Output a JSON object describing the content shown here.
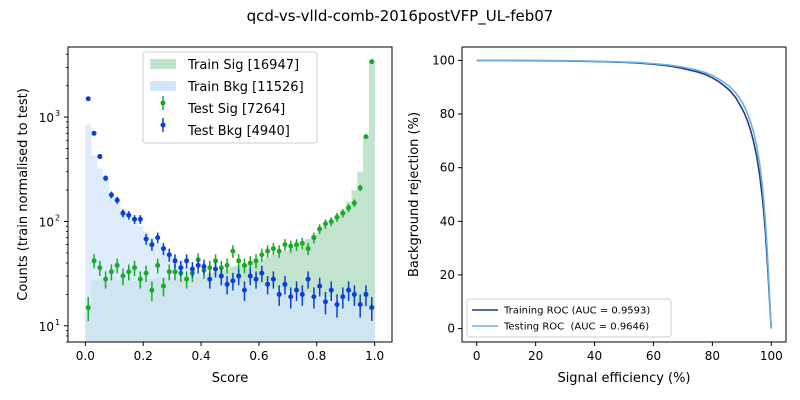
{
  "figure": {
    "title": "qcd-vs-vlld-comb-2016postVFP_UL-feb07"
  },
  "chart_data": [
    {
      "type": "histogram",
      "xlabel": "Score",
      "ylabel": "Counts (train normalised to test)",
      "xlim": [
        -0.06,
        1.06
      ],
      "ylim": [
        7,
        4700
      ],
      "yscale": "log",
      "xticks": [
        0.0,
        0.2,
        0.4,
        0.6,
        0.8,
        1.0
      ],
      "xtick_labels": [
        "0.0",
        "0.2",
        "0.4",
        "0.6",
        "0.8",
        "1.0"
      ],
      "yticks": [
        10,
        100,
        1000
      ],
      "ytick_labels": [
        "10",
        "10",
        "10"
      ],
      "ytick_exponents": [
        "1",
        "2",
        "3"
      ],
      "legend_position": "top-center",
      "bin_edges": [
        0.0,
        0.02,
        0.04,
        0.06,
        0.08,
        0.1,
        0.12,
        0.14,
        0.16,
        0.18,
        0.2,
        0.22,
        0.24,
        0.26,
        0.28,
        0.3,
        0.32,
        0.34,
        0.36,
        0.38,
        0.4,
        0.42,
        0.44,
        0.46,
        0.48,
        0.5,
        0.52,
        0.54,
        0.56,
        0.58,
        0.6,
        0.62,
        0.64,
        0.66,
        0.68,
        0.7,
        0.72,
        0.74,
        0.76,
        0.78,
        0.8,
        0.82,
        0.84,
        0.86,
        0.88,
        0.9,
        0.92,
        0.94,
        0.96,
        0.98,
        1.0
      ],
      "legend": [
        {
          "label": "Train Sig [16947]",
          "kind": "fill",
          "color": "#c2e3cd"
        },
        {
          "label": "Train Bkg [11526]",
          "kind": "fill",
          "color": "#d3e5fb"
        },
        {
          "label": "Test Sig [7264]",
          "kind": "errorbar",
          "color": "#1aaa2a"
        },
        {
          "label": "Test Bkg [4940]",
          "kind": "errorbar",
          "color": "#0a3fd6"
        }
      ],
      "series": [
        {
          "kind": "train-signal-histogram",
          "color": "#c2e3cd",
          "values": [
            15,
            27,
            28,
            27,
            29,
            27,
            28,
            28,
            27,
            28,
            28,
            28,
            29,
            29,
            29,
            29,
            29,
            30,
            30,
            30,
            31,
            32,
            33,
            34,
            35,
            37,
            38,
            39,
            40,
            41,
            43,
            45,
            48,
            50,
            52,
            55,
            58,
            62,
            68,
            75,
            82,
            90,
            100,
            112,
            130,
            155,
            200,
            300,
            650,
            3400
          ]
        },
        {
          "kind": "train-background-histogram",
          "color": "#d3e5fb",
          "values": [
            850,
            430,
            320,
            260,
            180,
            160,
            130,
            120,
            100,
            90,
            80,
            70,
            60,
            57,
            50,
            46,
            42,
            38,
            35,
            33,
            31,
            30,
            29,
            28,
            28,
            27,
            27,
            26,
            26,
            25,
            25,
            24,
            24,
            23,
            22,
            22,
            22,
            21,
            21,
            20,
            20,
            19,
            19,
            19,
            18,
            18,
            17,
            16,
            15,
            14
          ]
        },
        {
          "kind": "test-signal-points",
          "color": "#1aaa2a",
          "x": [
            0.01,
            0.03,
            0.05,
            0.07,
            0.09,
            0.11,
            0.13,
            0.15,
            0.17,
            0.19,
            0.21,
            0.23,
            0.25,
            0.27,
            0.29,
            0.31,
            0.33,
            0.35,
            0.37,
            0.39,
            0.41,
            0.43,
            0.45,
            0.47,
            0.49,
            0.51,
            0.53,
            0.55,
            0.57,
            0.59,
            0.61,
            0.63,
            0.65,
            0.67,
            0.69,
            0.71,
            0.73,
            0.75,
            0.77,
            0.79,
            0.81,
            0.83,
            0.85,
            0.87,
            0.89,
            0.91,
            0.93,
            0.95,
            0.97,
            0.99
          ],
          "y": [
            15,
            42,
            36,
            28,
            33,
            38,
            30,
            33,
            36,
            28,
            32,
            22,
            38,
            24,
            33,
            33,
            32,
            28,
            32,
            43,
            34,
            36,
            42,
            36,
            38,
            52,
            42,
            38,
            40,
            42,
            48,
            52,
            55,
            52,
            60,
            58,
            60,
            62,
            55,
            70,
            85,
            95,
            100,
            110,
            120,
            135,
            150,
            210,
            650,
            3400
          ]
        },
        {
          "kind": "test-background-points",
          "color": "#0a3fd6",
          "x": [
            0.01,
            0.03,
            0.05,
            0.07,
            0.09,
            0.11,
            0.13,
            0.15,
            0.17,
            0.19,
            0.21,
            0.23,
            0.25,
            0.27,
            0.29,
            0.31,
            0.33,
            0.35,
            0.37,
            0.39,
            0.41,
            0.43,
            0.45,
            0.47,
            0.49,
            0.51,
            0.53,
            0.55,
            0.57,
            0.59,
            0.61,
            0.63,
            0.65,
            0.67,
            0.69,
            0.71,
            0.73,
            0.75,
            0.77,
            0.79,
            0.81,
            0.83,
            0.85,
            0.87,
            0.89,
            0.91,
            0.93,
            0.95,
            0.97,
            0.99
          ],
          "y": [
            1500,
            700,
            420,
            260,
            180,
            160,
            120,
            115,
            105,
            105,
            68,
            60,
            70,
            55,
            48,
            42,
            36,
            42,
            35,
            38,
            37,
            28,
            35,
            30,
            25,
            27,
            30,
            22,
            30,
            28,
            32,
            25,
            28,
            20,
            25,
            19,
            22,
            20,
            28,
            19,
            24,
            17,
            22,
            16,
            19,
            22,
            20,
            16,
            20,
            15
          ]
        }
      ]
    },
    {
      "type": "line",
      "xlabel": "Signal efficiency (%)",
      "ylabel": "Background rejection (%)",
      "xlim": [
        -5,
        105
      ],
      "ylim": [
        -5,
        105
      ],
      "xticks": [
        0,
        20,
        40,
        60,
        80,
        100
      ],
      "xtick_labels": [
        "0",
        "20",
        "40",
        "60",
        "80",
        "100"
      ],
      "yticks": [
        0,
        20,
        40,
        60,
        80,
        100
      ],
      "ytick_labels": [
        "0",
        "20",
        "40",
        "60",
        "80",
        "100"
      ],
      "legend_position": "bottom-left",
      "series": [
        {
          "name": "Training ROC (AUC = 0.9593)",
          "color": "#1f3f7f",
          "x": [
            0,
            10,
            20,
            30,
            40,
            50,
            55,
            60,
            65,
            70,
            75,
            78,
            80,
            82,
            84,
            86,
            88,
            90,
            91,
            92,
            93,
            94,
            95,
            96,
            97,
            97.5,
            98,
            98.5,
            99,
            99.5,
            100
          ],
          "y": [
            100,
            100,
            99.9,
            99.8,
            99.6,
            99.3,
            99.0,
            98.6,
            98.0,
            97.0,
            95.7,
            94.6,
            93.5,
            92.2,
            90.6,
            88.7,
            86.0,
            82.2,
            80.0,
            77.3,
            73.9,
            69.7,
            64.5,
            57.7,
            48.6,
            42.8,
            36.0,
            27.8,
            18.5,
            9.0,
            0
          ]
        },
        {
          "name": "Testing ROC  (AUC = 0.9646)",
          "color": "#6ab0e8",
          "x": [
            0,
            10,
            20,
            30,
            40,
            50,
            55,
            60,
            65,
            70,
            75,
            78,
            80,
            82,
            84,
            86,
            88,
            90,
            91,
            92,
            93,
            94,
            95,
            96,
            97,
            97.5,
            98,
            98.5,
            99,
            99.5,
            100
          ],
          "y": [
            100,
            100,
            100,
            99.9,
            99.7,
            99.4,
            99.2,
            98.8,
            98.3,
            97.5,
            96.3,
            95.3,
            94.4,
            93.2,
            91.8,
            90.1,
            87.8,
            84.6,
            82.5,
            80.0,
            77.0,
            73.3,
            68.5,
            62.0,
            53.0,
            47.0,
            40.0,
            31.5,
            21.5,
            10.5,
            0
          ]
        }
      ]
    }
  ]
}
